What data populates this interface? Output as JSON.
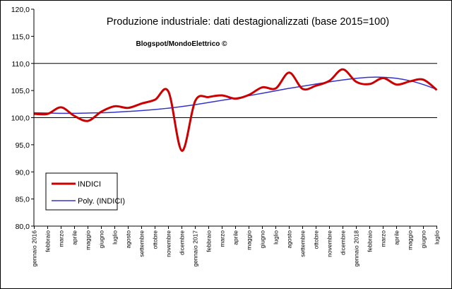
{
  "chart_data": {
    "type": "line",
    "title": "Produzione industriale: dati destagionalizzati (base 2015=100)",
    "subtitle": "Blogspot/MondoElettrico ©",
    "xlabel": "",
    "ylabel": "",
    "ylim": [
      80,
      120
    ],
    "yticks": [
      "80,0",
      "85,0",
      "90,0",
      "95,0",
      "100,0",
      "105,0",
      "110,0",
      "115,0",
      "120,0"
    ],
    "grid": "major horizontal lines at 110,0 and 100,0",
    "legend_position": "bottom-left",
    "categories": [
      "gennaio 2016",
      "febbraio",
      "marzo",
      "aprile",
      "maggio",
      "giugno",
      "luglio",
      "agosto",
      "settembre",
      "ottobre",
      "novembre",
      "dicembre",
      "gennaio 2017",
      "febbraio",
      "marzo",
      "aprile",
      "maggio",
      "giugno",
      "luglio",
      "agosto",
      "settembre",
      "ottobre",
      "novembre",
      "dicembre",
      "gennaio 2018",
      "febbraio",
      "marzo",
      "aprile",
      "maggio",
      "giugno",
      "luglio"
    ],
    "series": [
      {
        "name": "INDICI",
        "color": "#cc0000",
        "values": [
          100.7,
          100.7,
          101.9,
          100.3,
          99.4,
          101.1,
          102.1,
          101.8,
          102.6,
          103.3,
          104.8,
          93.9,
          103.1,
          103.8,
          104.1,
          103.5,
          104.2,
          105.6,
          105.4,
          108.3,
          105.3,
          105.9,
          106.8,
          108.9,
          106.6,
          106.2,
          107.3,
          106.1,
          106.7,
          107.0,
          105.1
        ]
      },
      {
        "name": "Poly. (INDICI)",
        "color": "#3333cc",
        "values": [
          100.9,
          100.85,
          100.8,
          100.8,
          100.85,
          100.9,
          101.0,
          101.15,
          101.3,
          101.5,
          101.75,
          102.05,
          102.4,
          102.8,
          103.2,
          103.6,
          104.05,
          104.5,
          104.95,
          105.4,
          105.8,
          106.2,
          106.6,
          106.95,
          107.25,
          107.45,
          107.45,
          107.25,
          106.8,
          106.1,
          105.2
        ]
      }
    ]
  }
}
